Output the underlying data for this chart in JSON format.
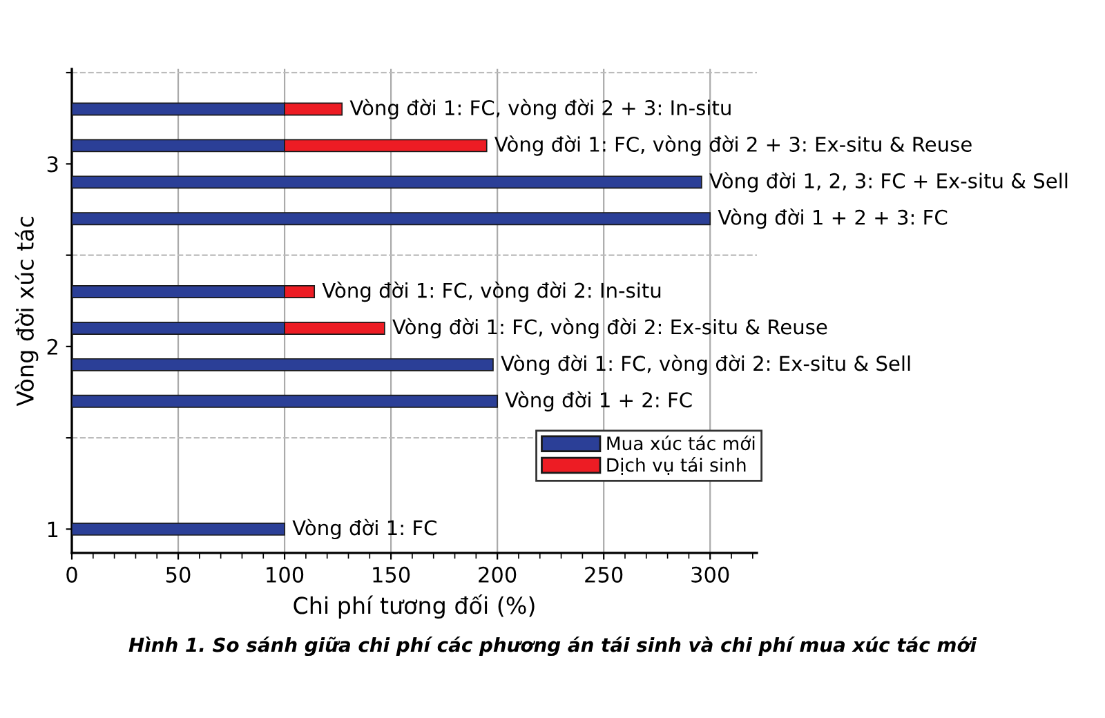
{
  "chart_data": {
    "type": "bar",
    "orientation": "horizontal",
    "stacked": true,
    "x": [
      1,
      1.7,
      1.9,
      2.1,
      2.3,
      2.7,
      2.9,
      3.1,
      3.3
    ],
    "series": [
      {
        "name": "Mua xúc tác mới",
        "color": "#2b3f97",
        "values": [
          100,
          200,
          198,
          100,
          100,
          300,
          296,
          100,
          100
        ]
      },
      {
        "name": "Dịch vụ tái sinh",
        "color": "#ed1c24",
        "values": [
          null,
          null,
          null,
          47,
          14,
          null,
          null,
          95,
          27
        ]
      }
    ],
    "xlabel": "Chi phí tương đối (%)",
    "ylabel": "Vòng đời xúc tác",
    "xlim": [
      0,
      322
    ],
    "xticks": [
      0,
      50,
      100,
      150,
      200,
      250,
      300
    ],
    "ylim": [
      0.87,
      3.52
    ],
    "yticks": [
      1,
      {
        "value": 1.5,
        "label": null
      },
      2,
      {
        "value": 2.5,
        "label": null
      },
      3,
      {
        "value": 3.5,
        "label": null
      }
    ],
    "grid": "x",
    "ref_lines": [
      {
        "axis": "y",
        "value": 1.5,
        "color": "#bbbbbb",
        "line_style": "dashed"
      },
      {
        "axis": "y",
        "value": 2.5,
        "color": "#bbbbbb",
        "line_style": "dashed"
      },
      {
        "axis": "y",
        "value": 3.5,
        "color": "#bbbbbb",
        "line_style": "dashed"
      }
    ],
    "legend": "bottom right",
    "annotations": [
      {
        "text": "Vòng đời 1: FC",
        "x": 100,
        "y": 1
      },
      {
        "text": "Vòng đời 1 + 2: FC",
        "x": 200,
        "y": 1.7
      },
      {
        "text": "Vòng đời 1: FC, vòng đời 2: Ex-situ & Sell",
        "x": 198,
        "y": 1.9
      },
      {
        "text": "Vòng đời 1: FC, vòng đời 2: Ex-situ & Reuse",
        "x": 147,
        "y": 2.1
      },
      {
        "text": "Vòng đời 1: FC, vòng đời 2: In-situ",
        "x": 114,
        "y": 2.3
      },
      {
        "text": "Vòng đời 1 + 2 + 3: FC",
        "x": 300,
        "y": 2.7
      },
      {
        "text": "Vòng đời 1, 2, 3: FC + Ex-situ & Sell",
        "x": 296,
        "y": 2.9
      },
      {
        "text": "Vòng đời 1: FC, vòng đời 2 + 3: Ex-situ & Reuse",
        "x": 195,
        "y": 3.1
      },
      {
        "text": "Vòng đời 1: FC, vòng đời 2 + 3: In-situ",
        "x": 127,
        "y": 3.3
      },
      "Hình 1. So sánh giữa chi phí các phương án tái sinh và chi phí mua xúc tác mới"
    ]
  }
}
